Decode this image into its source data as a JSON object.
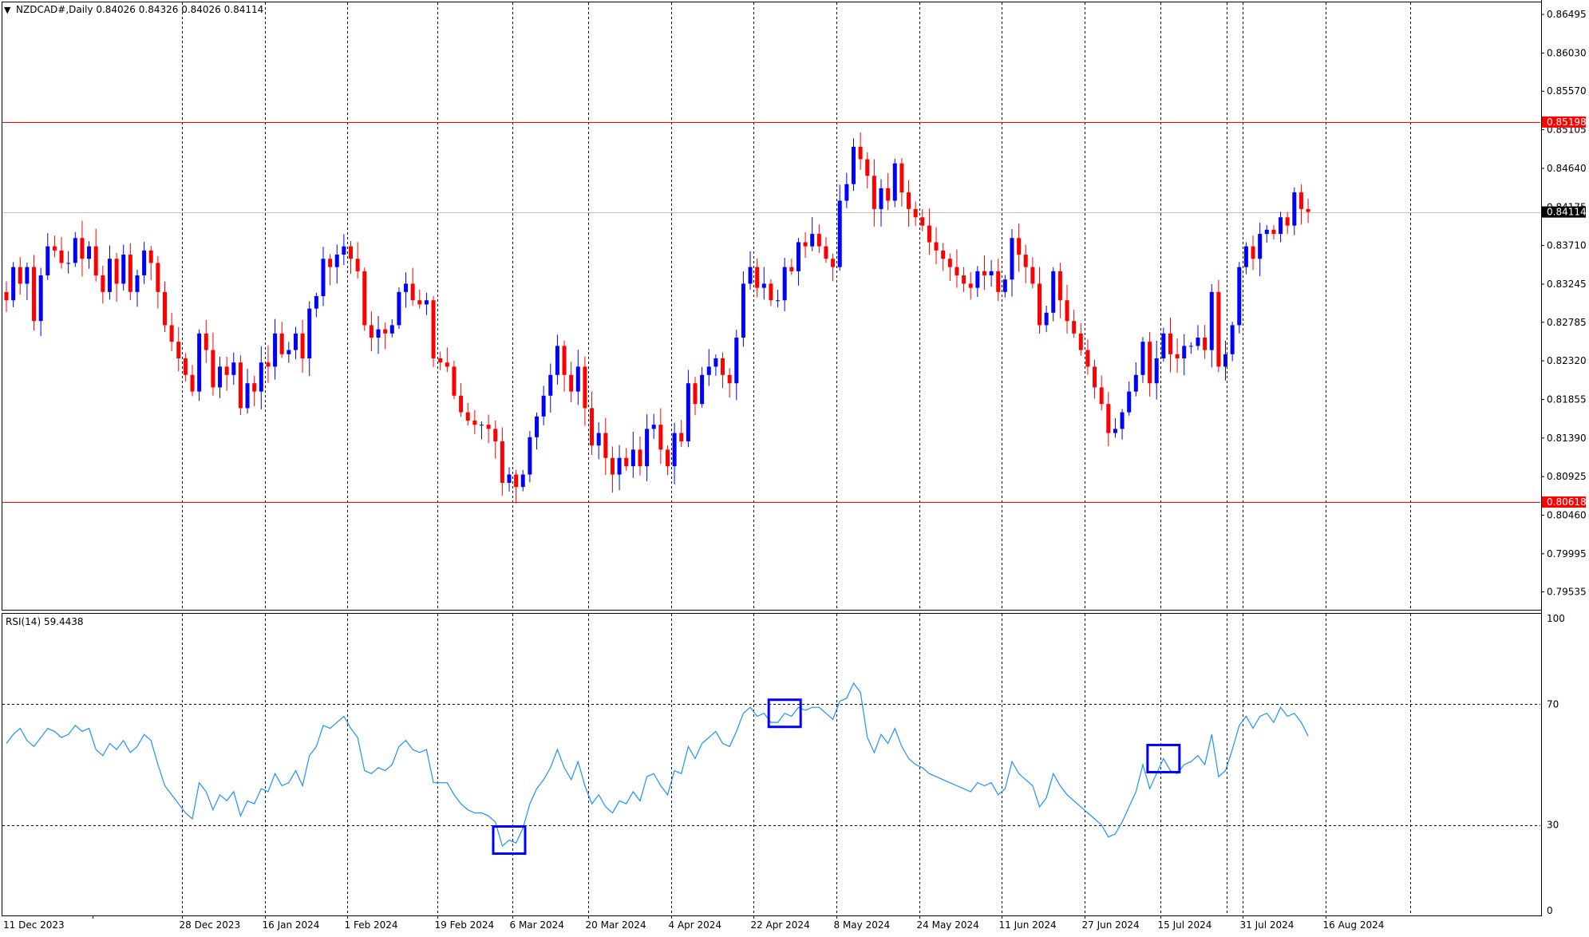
{
  "header": {
    "symbol_line": "NZDCAD#,Daily  0.84026 0.84326 0.84026 0.84114",
    "menu_marker": "▼"
  },
  "indicator": {
    "label": "RSI(14) 59.4438",
    "levels": [
      70,
      30
    ],
    "scale": [
      "100",
      "70",
      "30",
      "0"
    ]
  },
  "colors": {
    "bull": "#0000ff",
    "bear": "#ff0000",
    "level_line": "#ff0000",
    "rsi_line": "#1e90ff",
    "highlight_box": "#0000ff",
    "price_marker_bg": "#000000"
  },
  "chart_data": [
    {
      "type": "candlestick",
      "title": "NZDCAD#,Daily",
      "ohlc_last": {
        "open": 0.84026,
        "high": 0.84326,
        "low": 0.84026,
        "close": 0.84114
      },
      "y_ticks": [
        "0.86495",
        "0.86030",
        "0.85570",
        "0.85105",
        "0.84640",
        "0.84175",
        "0.83710",
        "0.83245",
        "0.82785",
        "0.82320",
        "0.81855",
        "0.81390",
        "0.80925",
        "0.80460",
        "0.79995",
        "0.79535"
      ],
      "ylim": [
        0.7932,
        0.8664
      ],
      "horizontal_levels": [
        {
          "value": 0.85198,
          "label": "0.85198"
        },
        {
          "value": 0.80618,
          "label": "0.80618"
        }
      ],
      "current_price": {
        "value": 0.84114,
        "label": "0.84114"
      },
      "x_tick_labels": [
        "11 Dec 2023",
        "28 Dec 2023",
        "16 Jan 2024",
        "1 Feb 2024",
        "19 Feb 2024",
        "6 Mar 2024",
        "20 Mar 2024",
        "4 Apr 2024",
        "22 Apr 2024",
        "8 May 2024",
        "24 May 2024",
        "11 Jun 2024",
        "27 Jun 2024",
        "15 Jul 2024",
        "31 Jul 2024",
        "16 Aug 2024"
      ],
      "closes": [
        0.8305,
        0.8345,
        0.8325,
        0.8345,
        0.828,
        0.8335,
        0.837,
        0.8365,
        0.835,
        0.835,
        0.838,
        0.8355,
        0.837,
        0.8335,
        0.8315,
        0.8355,
        0.8325,
        0.836,
        0.8315,
        0.8335,
        0.8365,
        0.835,
        0.8315,
        0.8275,
        0.8255,
        0.8235,
        0.8215,
        0.8195,
        0.8265,
        0.8245,
        0.82,
        0.8225,
        0.8215,
        0.823,
        0.8175,
        0.8205,
        0.8195,
        0.823,
        0.8225,
        0.8265,
        0.824,
        0.8245,
        0.8265,
        0.8235,
        0.8295,
        0.831,
        0.8355,
        0.8345,
        0.836,
        0.837,
        0.8355,
        0.834,
        0.8275,
        0.826,
        0.827,
        0.8265,
        0.8275,
        0.8315,
        0.8325,
        0.8305,
        0.83,
        0.8305,
        0.8235,
        0.823,
        0.8225,
        0.819,
        0.817,
        0.816,
        0.8155,
        0.8155,
        0.815,
        0.8135,
        0.8085,
        0.8095,
        0.808,
        0.8095,
        0.814,
        0.8165,
        0.819,
        0.8215,
        0.825,
        0.8215,
        0.8195,
        0.8225,
        0.8175,
        0.813,
        0.8145,
        0.8115,
        0.8095,
        0.8115,
        0.8105,
        0.8125,
        0.8105,
        0.815,
        0.8155,
        0.8125,
        0.8105,
        0.8145,
        0.8135,
        0.8205,
        0.818,
        0.8215,
        0.8225,
        0.8235,
        0.8215,
        0.8205,
        0.826,
        0.8325,
        0.8345,
        0.832,
        0.8325,
        0.8305,
        0.8305,
        0.8345,
        0.834,
        0.8375,
        0.837,
        0.8385,
        0.837,
        0.8355,
        0.8345,
        0.8425,
        0.8445,
        0.849,
        0.8475,
        0.8455,
        0.8415,
        0.844,
        0.8425,
        0.847,
        0.8435,
        0.8415,
        0.8405,
        0.8395,
        0.8375,
        0.8365,
        0.8355,
        0.8345,
        0.8335,
        0.8325,
        0.832,
        0.834,
        0.8335,
        0.834,
        0.8315,
        0.833,
        0.838,
        0.836,
        0.8345,
        0.8325,
        0.8275,
        0.829,
        0.834,
        0.8305,
        0.828,
        0.8265,
        0.8245,
        0.8225,
        0.82,
        0.818,
        0.8145,
        0.815,
        0.817,
        0.8195,
        0.8215,
        0.8255,
        0.8205,
        0.8235,
        0.8265,
        0.824,
        0.8235,
        0.825,
        0.825,
        0.826,
        0.8245,
        0.8315,
        0.8225,
        0.824,
        0.8275,
        0.8345,
        0.837,
        0.8355,
        0.8385,
        0.839,
        0.8385,
        0.8405,
        0.8395,
        0.8435,
        0.8415,
        0.84114
      ],
      "rsi": {
        "name": "RSI(14)",
        "last": 59.4438,
        "ylim": [
          0,
          100
        ],
        "values": [
          57,
          60,
          62,
          58,
          56,
          59,
          62,
          61,
          59,
          60,
          63,
          61,
          62,
          55,
          53,
          57,
          55,
          58,
          54,
          56,
          60,
          58,
          50,
          43,
          40,
          37,
          34,
          32,
          44,
          41,
          35,
          40,
          38,
          41,
          33,
          38,
          37,
          42,
          41,
          47,
          43,
          44,
          48,
          43,
          53,
          56,
          63,
          62,
          64,
          66,
          62,
          59,
          48,
          47,
          49,
          48,
          50,
          56,
          58,
          55,
          54,
          55,
          44,
          44,
          44,
          40,
          37,
          35,
          34,
          34,
          33,
          31,
          23,
          25,
          24,
          29,
          37,
          42,
          45,
          49,
          55,
          49,
          45,
          51,
          43,
          37,
          40,
          36,
          34,
          38,
          37,
          41,
          38,
          46,
          47,
          43,
          40,
          48,
          47,
          56,
          52,
          57,
          59,
          61,
          57,
          56,
          61,
          67,
          69,
          66,
          67,
          64,
          64,
          67,
          66,
          69,
          68,
          69,
          69,
          67,
          65,
          71,
          72,
          77,
          74,
          59,
          54,
          60,
          57,
          62,
          56,
          52,
          50,
          49,
          47,
          46,
          45,
          44,
          43,
          42,
          41,
          44,
          43,
          44,
          40,
          42,
          51,
          47,
          45,
          43,
          36,
          39,
          47,
          43,
          40,
          38,
          36,
          34,
          32,
          30,
          26,
          27,
          31,
          36,
          41,
          50,
          42,
          47,
          52,
          48,
          47,
          50,
          51,
          53,
          50,
          60,
          46,
          48,
          55,
          63,
          66,
          62,
          66,
          67,
          64,
          69,
          66,
          67,
          64,
          59.4438
        ]
      },
      "highlight_boxes_at_bar": [
        73,
        113,
        168
      ]
    }
  ]
}
